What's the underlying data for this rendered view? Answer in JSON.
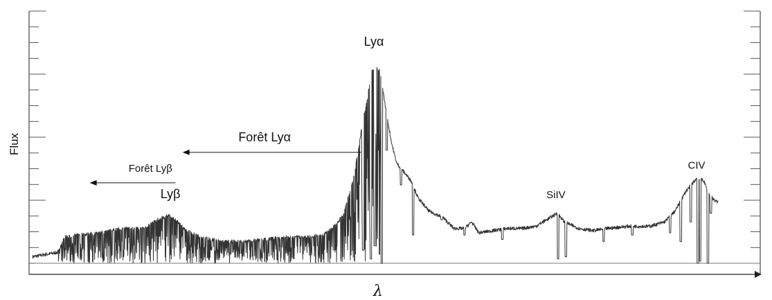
{
  "chart_data": {
    "type": "line",
    "title": "",
    "xlabel": "λ",
    "ylabel": "Flux",
    "grid": false,
    "legend": "none",
    "xlim": [
      0,
      100
    ],
    "ylim": [
      0,
      100
    ],
    "line_color": "#333333",
    "series": [
      {
        "continuum": [
          [
            0.5,
            3
          ],
          [
            4,
            5
          ],
          [
            5,
            12
          ],
          [
            7,
            13
          ],
          [
            10,
            14
          ],
          [
            13,
            16
          ],
          [
            16,
            16
          ],
          [
            18,
            20
          ],
          [
            19.5,
            22
          ],
          [
            20.5,
            20
          ],
          [
            22,
            15
          ],
          [
            24,
            12
          ],
          [
            27,
            10
          ],
          [
            30,
            10
          ],
          [
            33,
            11
          ],
          [
            36,
            12
          ],
          [
            39,
            12
          ],
          [
            41,
            13
          ],
          [
            42.5,
            16
          ],
          [
            44,
            22
          ],
          [
            45.5,
            40
          ],
          [
            46.5,
            60
          ],
          [
            47.5,
            78
          ],
          [
            48,
            88
          ],
          [
            48.6,
            91
          ],
          [
            49.2,
            88
          ],
          [
            50,
            70
          ],
          [
            50.8,
            55
          ],
          [
            51.5,
            46
          ],
          [
            52.5,
            42
          ],
          [
            53.5,
            38
          ],
          [
            54.5,
            30
          ],
          [
            56,
            24
          ],
          [
            58,
            21
          ],
          [
            59.5,
            16
          ],
          [
            61,
            16
          ],
          [
            62,
            19
          ],
          [
            63,
            14
          ],
          [
            65,
            15
          ],
          [
            67,
            16
          ],
          [
            69,
            16
          ],
          [
            71,
            17
          ],
          [
            73,
            21
          ],
          [
            74,
            23
          ],
          [
            75,
            19
          ],
          [
            77,
            16
          ],
          [
            79,
            15
          ],
          [
            81,
            16
          ],
          [
            84,
            17
          ],
          [
            87,
            17
          ],
          [
            89,
            19
          ],
          [
            90.5,
            24
          ],
          [
            92,
            33
          ],
          [
            93.5,
            39
          ],
          [
            94.5,
            38
          ],
          [
            95.2,
            32
          ],
          [
            96,
            29
          ],
          [
            96.5,
            28
          ]
        ],
        "absorption_dips": [
          [
            46.8,
            6
          ],
          [
            47.9,
            2
          ],
          [
            48.4,
            8
          ],
          [
            49.4,
            0
          ],
          [
            50.1,
            52
          ],
          [
            52.1,
            36
          ],
          [
            53.8,
            13
          ],
          [
            57.8,
            20
          ],
          [
            61,
            13
          ],
          [
            66.3,
            11
          ],
          [
            74.1,
            2
          ],
          [
            75.2,
            3
          ],
          [
            80.5,
            10
          ],
          [
            84.5,
            13
          ],
          [
            89.8,
            14
          ],
          [
            91.3,
            10
          ],
          [
            92.7,
            19
          ],
          [
            93.7,
            0
          ],
          [
            94,
            1
          ],
          [
            95.1,
            0
          ],
          [
            95.5,
            23
          ]
        ],
        "forest_ranges": [
          [
            4,
            49.5
          ]
        ]
      }
    ],
    "annotations": [
      {
        "id": "lya",
        "text": "Lyα",
        "x": 48.3,
        "y": 100
      },
      {
        "id": "lyb",
        "text": "Lyβ",
        "x": 19.8,
        "y": 30
      },
      {
        "id": "siiv",
        "text": "SiIV",
        "x": 73.8,
        "y": 30
      },
      {
        "id": "civ",
        "text": "CIV",
        "x": 93.5,
        "y": 43.5
      },
      {
        "id": "foret_lya",
        "text": "Forêt Lyα",
        "x": 33,
        "y": 56,
        "arrow_from": 46.5,
        "arrow_to": 21.5,
        "arrow_y": 51
      },
      {
        "id": "foret_lyb",
        "text": "Forêt Lyβ",
        "x": 17,
        "y": 42,
        "arrow_from": 20.5,
        "arrow_to": 8.5,
        "arrow_y": 37
      }
    ]
  }
}
